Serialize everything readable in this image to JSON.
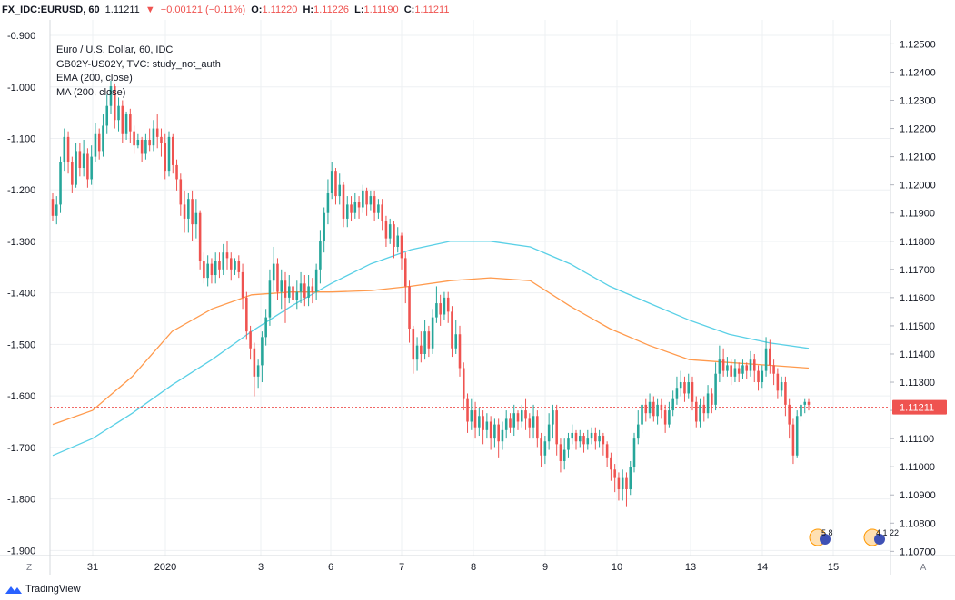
{
  "header": {
    "symbol": "FX_IDC:EURUSD, 60",
    "last": "1.11211",
    "change": "−0.00121 (−0.11%)",
    "o_label": "O:",
    "o_value": "1.11220",
    "h_label": "H:",
    "h_value": "1.11226",
    "l_label": "L:",
    "l_value": "1.11190",
    "c_label": "C:",
    "c_value": "1.11211"
  },
  "legend": {
    "title": "Euro / U.S. Dollar, 60, IDC",
    "study": "GB02Y-US02Y, TVC: study_not_auth",
    "ema": "EMA (200, close)",
    "ma": "MA (200, close)"
  },
  "colors": {
    "up": "#26a69a",
    "down": "#ef5350",
    "ema": "#ff9a4d",
    "ma": "#5ad0e6",
    "last_line": "#ef5350",
    "grid": "#eef0f3"
  },
  "footer": {
    "brand": "TradingView"
  },
  "corners": {
    "left": "Z",
    "right": "A"
  },
  "event_badges": [
    {
      "label": "5 8"
    },
    {
      "label": "4 1 22"
    }
  ],
  "chart_data": {
    "type": "candlestick",
    "title": "Euro / U.S. Dollar, 60, IDC",
    "left_axis": {
      "label": "GB02Y-US02Y",
      "ticks": [
        "-0.900",
        "-1.000",
        "-1.100",
        "-1.200",
        "-1.300",
        "-1.400",
        "-1.500",
        "-1.600",
        "-1.700",
        "-1.800",
        "-1.900"
      ],
      "range": [
        -1.91,
        -0.87
      ]
    },
    "right_axis": {
      "ticks": [
        "1.12500",
        "1.12400",
        "1.12300",
        "1.12200",
        "1.12100",
        "1.12000",
        "1.11900",
        "1.11800",
        "1.11700",
        "1.11600",
        "1.11500",
        "1.11400",
        "1.11300",
        "1.11200",
        "1.11100",
        "1.11000",
        "1.10900",
        "1.10800",
        "1.10700"
      ],
      "range": [
        1.10685,
        1.12585
      ],
      "last_price": "1.11211"
    },
    "x_labels": [
      "31",
      "2020",
      "3",
      "6",
      "7",
      "8",
      "9",
      "10",
      "13",
      "14",
      "15"
    ],
    "candles": [
      [
        1.1195,
        1.1189,
        1.1197,
        1.1187
      ],
      [
        1.1189,
        1.1193,
        1.1196,
        1.1186
      ],
      [
        1.1193,
        1.1208,
        1.121,
        1.119
      ],
      [
        1.1208,
        1.1217,
        1.122,
        1.1205
      ],
      [
        1.1217,
        1.1208,
        1.1219,
        1.1204
      ],
      [
        1.1208,
        1.12,
        1.121,
        1.1197
      ],
      [
        1.12,
        1.1212,
        1.1215,
        1.1199
      ],
      [
        1.1212,
        1.1206,
        1.1215,
        1.1203
      ],
      [
        1.1206,
        1.1211,
        1.1216,
        1.1203
      ],
      [
        1.1211,
        1.1202,
        1.1213,
        1.1199
      ],
      [
        1.1202,
        1.121,
        1.1214,
        1.12
      ],
      [
        1.121,
        1.1218,
        1.1222,
        1.1208
      ],
      [
        1.1218,
        1.1212,
        1.122,
        1.1209
      ],
      [
        1.1212,
        1.1221,
        1.1225,
        1.121
      ],
      [
        1.1221,
        1.1228,
        1.1232,
        1.1218
      ],
      [
        1.1228,
        1.1235,
        1.1237,
        1.1225
      ],
      [
        1.1235,
        1.1223,
        1.1236,
        1.122
      ],
      [
        1.1223,
        1.1228,
        1.1231,
        1.1219
      ],
      [
        1.1228,
        1.1218,
        1.123,
        1.1215
      ],
      [
        1.1218,
        1.1225,
        1.1226,
        1.1216
      ],
      [
        1.1225,
        1.1219,
        1.1227,
        1.1215
      ],
      [
        1.1219,
        1.1214,
        1.1221,
        1.1211
      ],
      [
        1.1214,
        1.1216,
        1.1218,
        1.1213
      ],
      [
        1.1216,
        1.1211,
        1.1217,
        1.1208
      ],
      [
        1.1211,
        1.1216,
        1.1218,
        1.1209
      ],
      [
        1.1216,
        1.1214,
        1.122,
        1.1212
      ],
      [
        1.1214,
        1.122,
        1.1223,
        1.1212
      ],
      [
        1.122,
        1.1217,
        1.1225,
        1.1213
      ],
      [
        1.1217,
        1.1215,
        1.122,
        1.121
      ],
      [
        1.1215,
        1.1205,
        1.1218,
        1.1202
      ],
      [
        1.1205,
        1.1217,
        1.1219,
        1.1203
      ],
      [
        1.1217,
        1.1207,
        1.1218,
        1.1204
      ],
      [
        1.1207,
        1.1202,
        1.1209,
        1.1198
      ],
      [
        1.1202,
        1.1193,
        1.1204,
        1.1189
      ],
      [
        1.1193,
        1.1188,
        1.1198,
        1.1183
      ],
      [
        1.1188,
        1.1195,
        1.1197,
        1.1183
      ],
      [
        1.1195,
        1.1186,
        1.1198,
        1.118
      ],
      [
        1.1186,
        1.119,
        1.1195,
        1.1181
      ],
      [
        1.119,
        1.1173,
        1.1191,
        1.117
      ],
      [
        1.1173,
        1.1167,
        1.1176,
        1.1165
      ],
      [
        1.1167,
        1.1172,
        1.1175,
        1.1164
      ],
      [
        1.1172,
        1.1168,
        1.1174,
        1.1165
      ],
      [
        1.1168,
        1.1173,
        1.1176,
        1.1165
      ],
      [
        1.1173,
        1.117,
        1.1176,
        1.1167
      ],
      [
        1.117,
        1.1176,
        1.1179,
        1.1168
      ],
      [
        1.1176,
        1.1174,
        1.118,
        1.117
      ],
      [
        1.1174,
        1.117,
        1.1176,
        1.1166
      ],
      [
        1.117,
        1.1173,
        1.1174,
        1.1168
      ],
      [
        1.1173,
        1.1169,
        1.1175,
        1.1167
      ],
      [
        1.1169,
        1.116,
        1.1172,
        1.1156
      ],
      [
        1.116,
        1.1148,
        1.1162,
        1.1145
      ],
      [
        1.1148,
        1.1142,
        1.115,
        1.1138
      ],
      [
        1.1142,
        1.1132,
        1.1144,
        1.1125
      ],
      [
        1.1132,
        1.1136,
        1.1138,
        1.1128
      ],
      [
        1.1136,
        1.1146,
        1.1148,
        1.113
      ],
      [
        1.1146,
        1.1153,
        1.1156,
        1.1143
      ],
      [
        1.1153,
        1.1166,
        1.117,
        1.115
      ],
      [
        1.1166,
        1.1172,
        1.1178,
        1.1162
      ],
      [
        1.1172,
        1.1162,
        1.1174,
        1.1159
      ],
      [
        1.1162,
        1.1166,
        1.117,
        1.1156
      ],
      [
        1.1166,
        1.116,
        1.1169,
        1.1151
      ],
      [
        1.116,
        1.1164,
        1.1168,
        1.1158
      ],
      [
        1.1164,
        1.1159,
        1.1165,
        1.1156
      ],
      [
        1.1159,
        1.1162,
        1.1166,
        1.1156
      ],
      [
        1.1162,
        1.1165,
        1.1169,
        1.1158
      ],
      [
        1.1165,
        1.116,
        1.1168,
        1.1157
      ],
      [
        1.116,
        1.1164,
        1.1168,
        1.1157
      ],
      [
        1.1164,
        1.1162,
        1.1167,
        1.1158
      ],
      [
        1.1162,
        1.117,
        1.1172,
        1.1159
      ],
      [
        1.117,
        1.118,
        1.1184,
        1.1165
      ],
      [
        1.118,
        1.119,
        1.1192,
        1.1176
      ],
      [
        1.119,
        1.1197,
        1.1202,
        1.1186
      ],
      [
        1.1197,
        1.1205,
        1.1208,
        1.1195
      ],
      [
        1.1205,
        1.1196,
        1.1206,
        1.1193
      ],
      [
        1.1196,
        1.12,
        1.1204,
        1.1193
      ],
      [
        1.12,
        1.1188,
        1.1201,
        1.1185
      ],
      [
        1.1188,
        1.1193,
        1.1196,
        1.1185
      ],
      [
        1.1193,
        1.119,
        1.1196,
        1.1187
      ],
      [
        1.119,
        1.1194,
        1.1197,
        1.1188
      ],
      [
        1.1194,
        1.1192,
        1.1196,
        1.1188
      ],
      [
        1.1192,
        1.1198,
        1.12,
        1.119
      ],
      [
        1.1198,
        1.1193,
        1.1199,
        1.1189
      ],
      [
        1.1193,
        1.1196,
        1.1198,
        1.1191
      ],
      [
        1.1196,
        1.119,
        1.1198,
        1.1187
      ],
      [
        1.119,
        1.1193,
        1.1195,
        1.1188
      ],
      [
        1.1193,
        1.1187,
        1.1195,
        1.1184
      ],
      [
        1.1187,
        1.1181,
        1.1189,
        1.1178
      ],
      [
        1.1181,
        1.1186,
        1.1188,
        1.1179
      ],
      [
        1.1186,
        1.1178,
        1.1187,
        1.1174
      ],
      [
        1.1178,
        1.1182,
        1.1185,
        1.1176
      ],
      [
        1.1182,
        1.1174,
        1.1183,
        1.117
      ],
      [
        1.1174,
        1.1164,
        1.1176,
        1.1158
      ],
      [
        1.1164,
        1.1149,
        1.1166,
        1.1144
      ],
      [
        1.1149,
        1.1138,
        1.115,
        1.1133
      ],
      [
        1.1138,
        1.1143,
        1.1146,
        1.1134
      ],
      [
        1.1143,
        1.114,
        1.1148,
        1.1137
      ],
      [
        1.114,
        1.1148,
        1.1152,
        1.1138
      ],
      [
        1.1148,
        1.1142,
        1.115,
        1.1139
      ],
      [
        1.1142,
        1.1153,
        1.1156,
        1.114
      ],
      [
        1.1153,
        1.1158,
        1.1164,
        1.1151
      ],
      [
        1.1158,
        1.1154,
        1.1161,
        1.115
      ],
      [
        1.1154,
        1.116,
        1.1162,
        1.1152
      ],
      [
        1.116,
        1.1155,
        1.1162,
        1.1151
      ],
      [
        1.1155,
        1.1142,
        1.1157,
        1.1139
      ],
      [
        1.1142,
        1.1147,
        1.1152,
        1.114
      ],
      [
        1.1147,
        1.1135,
        1.115,
        1.1132
      ],
      [
        1.1135,
        1.1124,
        1.1137,
        1.112
      ],
      [
        1.1124,
        1.1116,
        1.1126,
        1.1112
      ],
      [
        1.1116,
        1.112,
        1.1124,
        1.1113
      ],
      [
        1.112,
        1.1114,
        1.1123,
        1.111
      ],
      [
        1.1114,
        1.1118,
        1.1121,
        1.1111
      ],
      [
        1.1118,
        1.1113,
        1.112,
        1.1108
      ],
      [
        1.1113,
        1.1116,
        1.1119,
        1.111
      ],
      [
        1.1116,
        1.111,
        1.1118,
        1.1106
      ],
      [
        1.111,
        1.1115,
        1.1117,
        1.1107
      ],
      [
        1.1115,
        1.1109,
        1.1117,
        1.1103
      ],
      [
        1.1109,
        1.1113,
        1.1116,
        1.1106
      ],
      [
        1.1113,
        1.1117,
        1.112,
        1.111
      ],
      [
        1.1117,
        1.1114,
        1.1119,
        1.1112
      ],
      [
        1.1114,
        1.1119,
        1.1122,
        1.1111
      ],
      [
        1.1119,
        1.1116,
        1.112,
        1.1113
      ],
      [
        1.1116,
        1.112,
        1.1122,
        1.1114
      ],
      [
        1.112,
        1.1117,
        1.1124,
        1.1113
      ],
      [
        1.1117,
        1.1114,
        1.1119,
        1.111
      ],
      [
        1.1114,
        1.1118,
        1.1122,
        1.111
      ],
      [
        1.1118,
        1.111,
        1.112,
        1.1107
      ],
      [
        1.111,
        1.1104,
        1.1112,
        1.11
      ],
      [
        1.1104,
        1.1109,
        1.1111,
        1.1101
      ],
      [
        1.1109,
        1.1115,
        1.1119,
        1.1106
      ],
      [
        1.1115,
        1.112,
        1.1122,
        1.111
      ],
      [
        1.112,
        1.1108,
        1.1122,
        1.1104
      ],
      [
        1.1108,
        1.1102,
        1.111,
        1.1098
      ],
      [
        1.1102,
        1.1106,
        1.111,
        1.1099
      ],
      [
        1.1106,
        1.111,
        1.1112,
        1.1103
      ],
      [
        1.111,
        1.1112,
        1.1115,
        1.1108
      ],
      [
        1.1112,
        1.1109,
        1.1113,
        1.1106
      ],
      [
        1.1109,
        1.1111,
        1.1113,
        1.1107
      ],
      [
        1.1111,
        1.1108,
        1.1112,
        1.1105
      ],
      [
        1.1108,
        1.111,
        1.1113,
        1.1106
      ],
      [
        1.111,
        1.1112,
        1.1114,
        1.1108
      ],
      [
        1.1112,
        1.1109,
        1.1114,
        1.1106
      ],
      [
        1.1109,
        1.1111,
        1.1113,
        1.1107
      ],
      [
        1.1111,
        1.1108,
        1.1112,
        1.1104
      ],
      [
        1.1108,
        1.1103,
        1.1109,
        1.11
      ],
      [
        1.1103,
        1.1099,
        1.1105,
        1.1095
      ],
      [
        1.1099,
        1.1096,
        1.1101,
        1.1091
      ],
      [
        1.1096,
        1.1092,
        1.1098,
        1.1088
      ],
      [
        1.1092,
        1.1096,
        1.1099,
        1.1088
      ],
      [
        1.1096,
        1.1092,
        1.1098,
        1.1086
      ],
      [
        1.1092,
        1.11,
        1.1102,
        1.109
      ],
      [
        1.11,
        1.111,
        1.1112,
        1.1098
      ],
      [
        1.111,
        1.1115,
        1.112,
        1.1108
      ],
      [
        1.1115,
        1.1122,
        1.1124,
        1.1112
      ],
      [
        1.1122,
        1.1119,
        1.1124,
        1.1116
      ],
      [
        1.1119,
        1.1123,
        1.1126,
        1.1117
      ],
      [
        1.1123,
        1.1118,
        1.1125,
        1.1116
      ],
      [
        1.1118,
        1.1122,
        1.1124,
        1.1115
      ],
      [
        1.1122,
        1.112,
        1.1124,
        1.1117
      ],
      [
        1.112,
        1.1115,
        1.1122,
        1.1112
      ],
      [
        1.1115,
        1.112,
        1.1123,
        1.1114
      ],
      [
        1.112,
        1.1124,
        1.1127,
        1.1118
      ],
      [
        1.1124,
        1.1128,
        1.1132,
        1.1122
      ],
      [
        1.1128,
        1.113,
        1.1134,
        1.1125
      ],
      [
        1.113,
        1.1126,
        1.1132,
        1.1123
      ],
      [
        1.1126,
        1.113,
        1.1133,
        1.1124
      ],
      [
        1.113,
        1.1123,
        1.1132,
        1.112
      ],
      [
        1.1123,
        1.1116,
        1.1125,
        1.1114
      ],
      [
        1.1116,
        1.1122,
        1.1124,
        1.1114
      ],
      [
        1.1122,
        1.1119,
        1.1125,
        1.1116
      ],
      [
        1.1119,
        1.1126,
        1.1129,
        1.1117
      ],
      [
        1.1126,
        1.1122,
        1.1128,
        1.1119
      ],
      [
        1.1122,
        1.1133,
        1.1137,
        1.112
      ],
      [
        1.1133,
        1.1138,
        1.1143,
        1.113
      ],
      [
        1.1138,
        1.1134,
        1.1142,
        1.1132
      ],
      [
        1.1134,
        1.1136,
        1.1139,
        1.1132
      ],
      [
        1.1136,
        1.1132,
        1.1138,
        1.1129
      ],
      [
        1.1132,
        1.1135,
        1.1138,
        1.113
      ],
      [
        1.1135,
        1.1133,
        1.1137,
        1.113
      ],
      [
        1.1133,
        1.1136,
        1.1138,
        1.1131
      ],
      [
        1.1136,
        1.1134,
        1.1137,
        1.1131
      ],
      [
        1.1134,
        1.1138,
        1.1141,
        1.1132
      ],
      [
        1.1138,
        1.1134,
        1.114,
        1.113
      ],
      [
        1.1134,
        1.113,
        1.1136,
        1.1127
      ],
      [
        1.113,
        1.1134,
        1.1136,
        1.1128
      ],
      [
        1.1134,
        1.1142,
        1.1146,
        1.1132
      ],
      [
        1.1142,
        1.1136,
        1.1145,
        1.1133
      ],
      [
        1.1136,
        1.1133,
        1.1138,
        1.1129
      ],
      [
        1.1133,
        1.1127,
        1.1135,
        1.1124
      ],
      [
        1.1127,
        1.113,
        1.1132,
        1.1125
      ],
      [
        1.113,
        1.1122,
        1.1132,
        1.1118
      ],
      [
        1.1122,
        1.1115,
        1.1124,
        1.111
      ],
      [
        1.1115,
        1.1104,
        1.1117,
        1.1101
      ],
      [
        1.1104,
        1.1118,
        1.112,
        1.1103
      ],
      [
        1.1118,
        1.1122,
        1.1124,
        1.1116
      ],
      [
        1.1122,
        1.1123,
        1.1124,
        1.1119
      ],
      [
        1.1123,
        1.1122,
        1.1124,
        1.112
      ]
    ],
    "ema_200": [
      1.1115,
      1.112,
      1.1132,
      1.1148,
      1.1156,
      1.1161,
      1.1162,
      1.1162,
      1.11625,
      1.1164,
      1.1166,
      1.1167,
      1.1166,
      1.1157,
      1.1149,
      1.1143,
      1.1138,
      1.1137,
      1.1136,
      1.1135
    ],
    "ma_200": [
      1.1104,
      1.111,
      1.1119,
      1.1129,
      1.1138,
      1.1148,
      1.1157,
      1.1165,
      1.1172,
      1.1177,
      1.118,
      1.118,
      1.1178,
      1.1172,
      1.1164,
      1.1158,
      1.1152,
      1.1147,
      1.1144,
      1.1142
    ],
    "grid": true,
    "legend_placement": "top-left"
  }
}
